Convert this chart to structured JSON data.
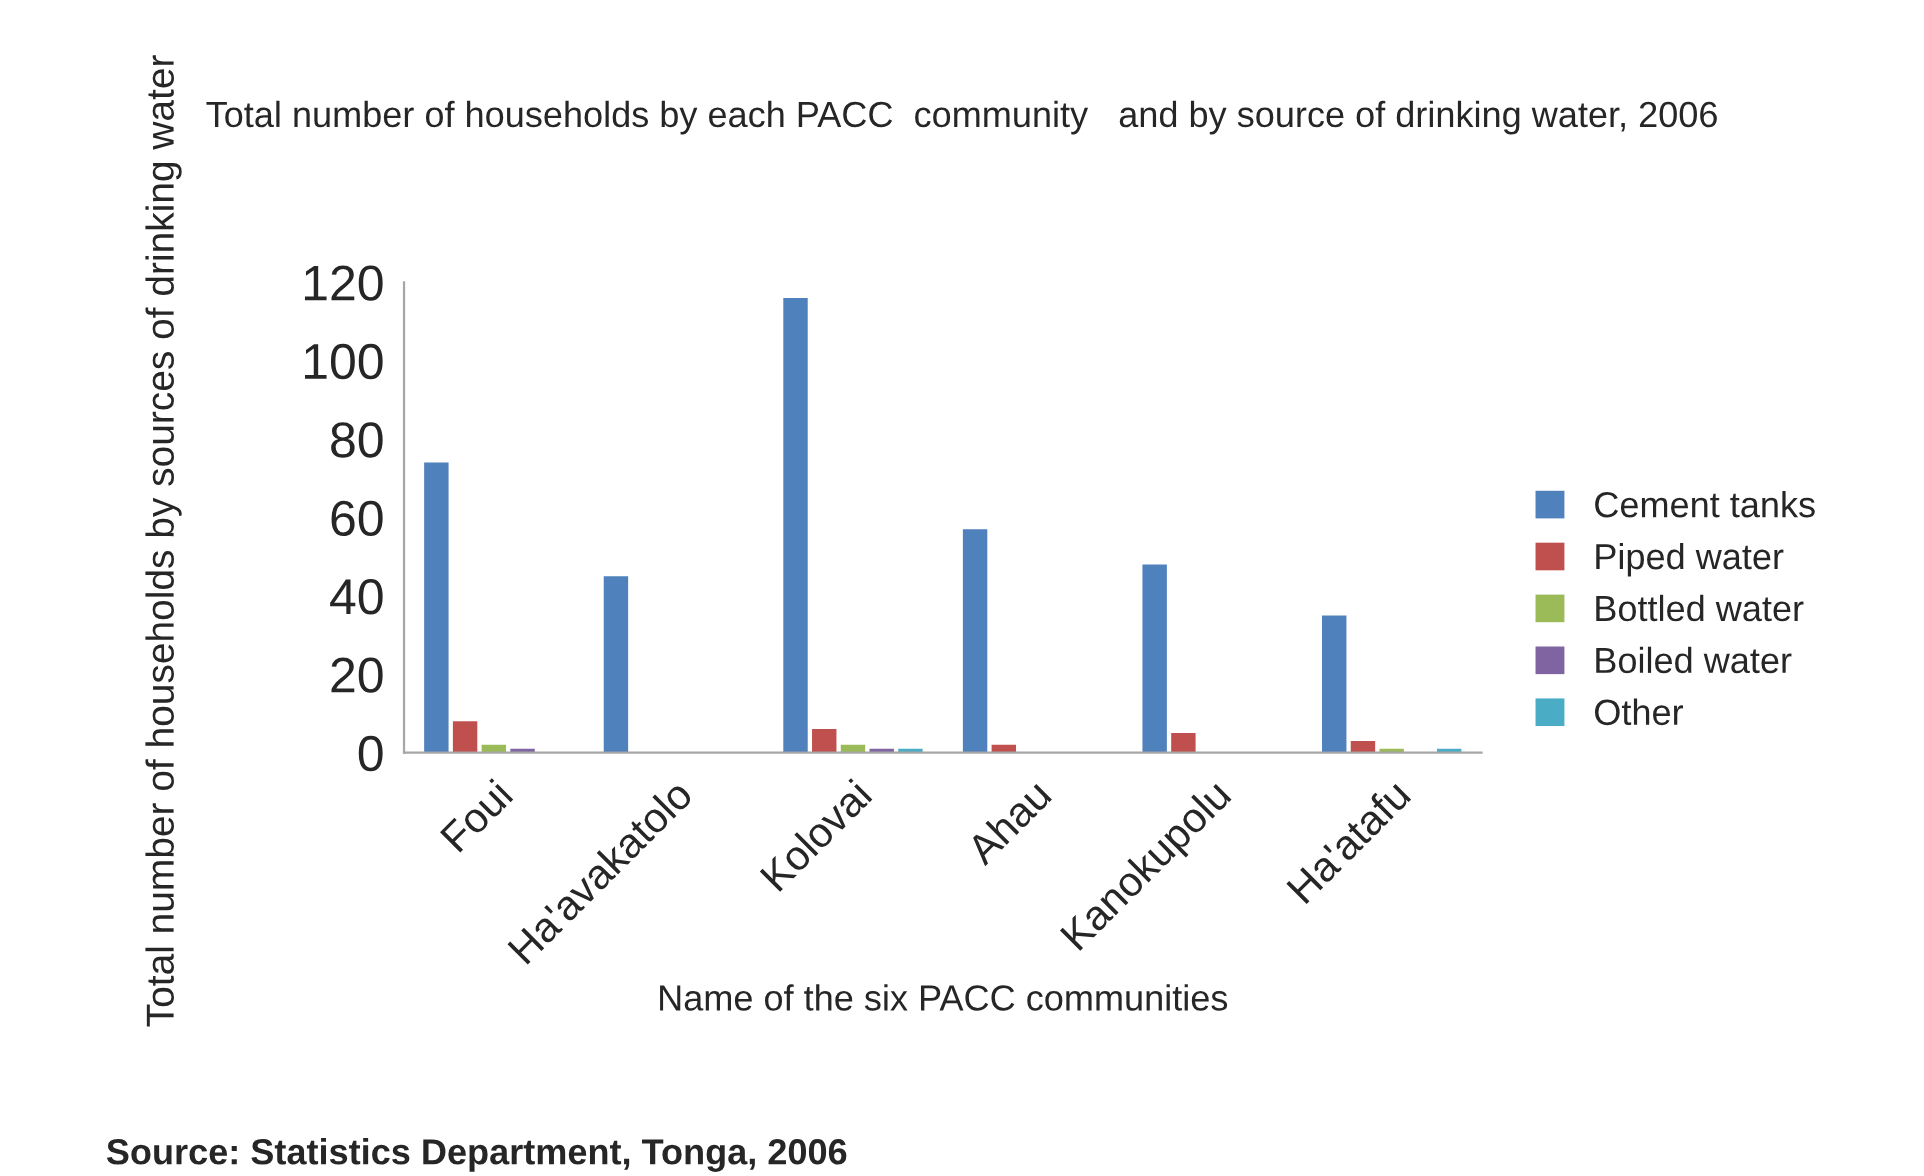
{
  "chart_data": {
    "type": "bar",
    "title": "Total number of households by each PACC  community   and by source of drinking water, 2006",
    "xlabel": "Name of the six PACC communities",
    "ylabel": "Total number of households by sources of drinking water",
    "categories": [
      "Foui",
      "Ha'avakatolo",
      "Kolovai",
      "Ahau",
      "Kanokupolu",
      "Ha'atafu"
    ],
    "series": [
      {
        "name": "Cement tanks",
        "color": "#4f81bd",
        "values": [
          74,
          45,
          116,
          57,
          48,
          35
        ]
      },
      {
        "name": "Piped water",
        "color": "#c0504d",
        "values": [
          8,
          0,
          6,
          2,
          5,
          3
        ]
      },
      {
        "name": "Bottled water",
        "color": "#9bbb59",
        "values": [
          2,
          0,
          2,
          0,
          0,
          1
        ]
      },
      {
        "name": "Boiled water",
        "color": "#8064a2",
        "values": [
          1,
          0,
          1,
          0,
          0,
          0
        ]
      },
      {
        "name": "Other",
        "color": "#4bacc6",
        "values": [
          0,
          0,
          1,
          0,
          0,
          1
        ]
      }
    ],
    "ylim": [
      0,
      120
    ],
    "yticks": [
      0,
      20,
      40,
      60,
      80,
      100,
      120
    ],
    "grid": false,
    "legend": "right",
    "annotations": [
      "Source: Statistics Department, Tonga, 2006"
    ]
  }
}
